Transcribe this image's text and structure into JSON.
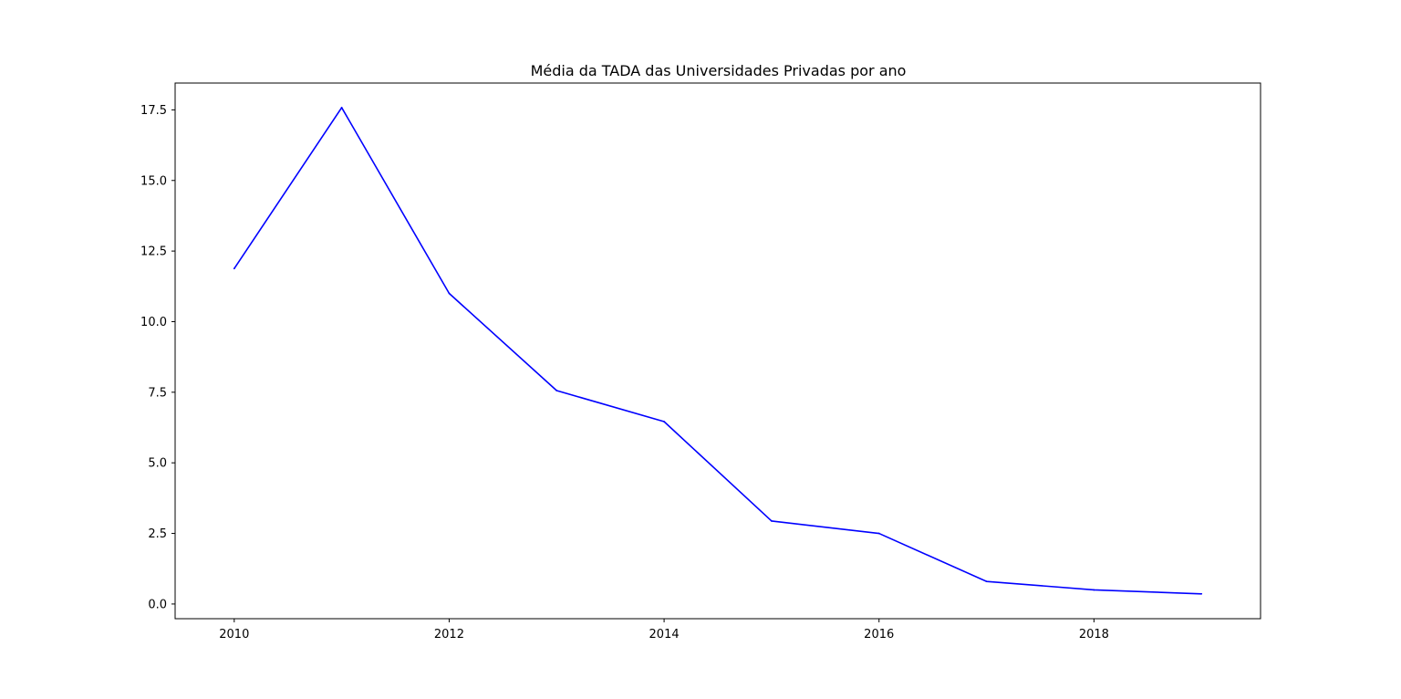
{
  "chart_data": {
    "type": "line",
    "title": "Média da TADA das Universidades Privadas por ano",
    "xlabel": "",
    "ylabel": "",
    "x": [
      2010,
      2011,
      2012,
      2013,
      2014,
      2015,
      2016,
      2017,
      2018,
      2019
    ],
    "series": [
      {
        "color": "#0000ff",
        "values": [
          11.88,
          17.58,
          11.0,
          7.56,
          6.46,
          2.94,
          2.5,
          0.8,
          0.5,
          0.36
        ]
      }
    ],
    "xlim": [
      2009.45,
      2019.55
    ],
    "ylim": [
      -0.52,
      18.45
    ],
    "x_ticks": [
      2010,
      2012,
      2014,
      2016,
      2018
    ],
    "x_tick_labels": [
      "2010",
      "2012",
      "2014",
      "2016",
      "2018"
    ],
    "y_ticks": [
      0,
      2.5,
      5,
      7.5,
      10,
      12.5,
      15,
      17.5
    ],
    "y_tick_labels": [
      "0.0",
      "2.5",
      "5.0",
      "7.5",
      "10.0",
      "12.5",
      "15.0",
      "17.5"
    ],
    "grid": false,
    "legend": "none"
  }
}
